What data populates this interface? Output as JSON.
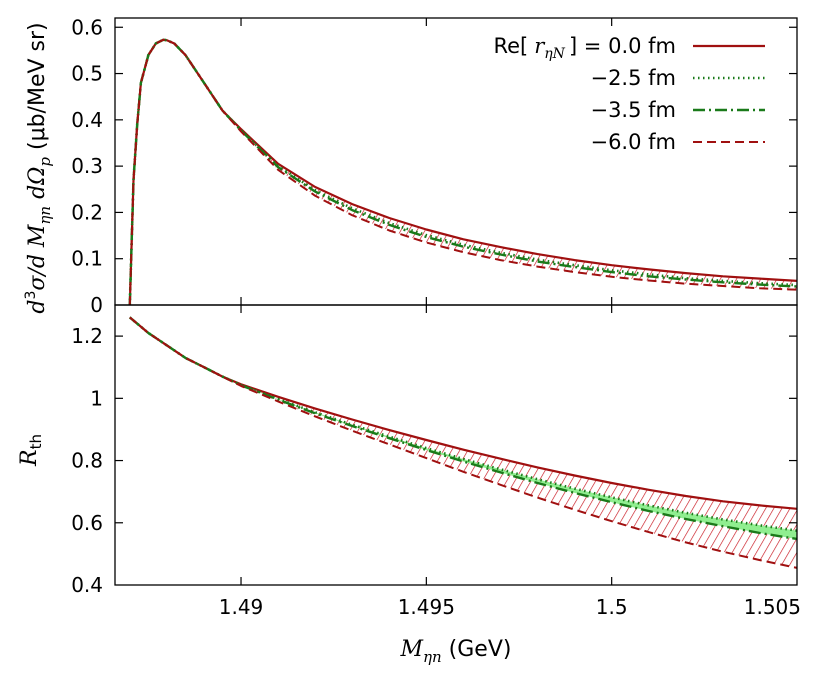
{
  "colors": {
    "red": "#a01010",
    "green": "#1a7a1a",
    "band_fill": "#90ee90",
    "hatch": "#c8141e"
  },
  "legend": {
    "header_pre": "Re[",
    "header_sym": "r",
    "header_sub": "ηN",
    "header_post": "] = 0.0 fm",
    "entries": [
      {
        "label": "−2.5 fm",
        "style": "dotted",
        "color": "green"
      },
      {
        "label": "−3.5 fm",
        "style": "dash-dot",
        "color": "green"
      },
      {
        "label": "−6.0 fm",
        "style": "dashed",
        "color": "red"
      }
    ]
  },
  "chart_data": [
    {
      "type": "line",
      "panel": "top",
      "ylabel_parts": [
        "d",
        "3",
        "σ/d ",
        "M",
        "ηn",
        " dΩ",
        "p",
        " (μb/MeV sr)"
      ],
      "xlim": [
        1.4866,
        1.505
      ],
      "ylim": [
        0,
        0.62
      ],
      "yticks": [
        0,
        0.1,
        0.2,
        0.3,
        0.4,
        0.5,
        0.6
      ],
      "ytick_labels": [
        "0",
        "0.1",
        "0.2",
        "0.3",
        "0.4",
        "0.5",
        "0.6"
      ],
      "x": [
        1.487,
        1.4871,
        1.4872,
        1.4873,
        1.4875,
        1.4877,
        1.4879,
        1.488,
        1.4882,
        1.4885,
        1.489,
        1.4895,
        1.49,
        1.491,
        1.492,
        1.493,
        1.494,
        1.495,
        1.496,
        1.497,
        1.498,
        1.499,
        1.5,
        1.501,
        1.502,
        1.503,
        1.504,
        1.505
      ],
      "series": [
        {
          "name": "Re[ rηN ] = 0.0 fm",
          "style": "solid",
          "values": [
            0,
            0.27,
            0.39,
            0.48,
            0.54,
            0.565,
            0.573,
            0.572,
            0.565,
            0.54,
            0.48,
            0.42,
            0.38,
            0.305,
            0.255,
            0.218,
            0.188,
            0.163,
            0.142,
            0.125,
            0.11,
            0.097,
            0.086,
            0.077,
            0.069,
            0.062,
            0.057,
            0.052
          ]
        },
        {
          "name": "−2.5 fm",
          "style": "dotted",
          "values": [
            0,
            0.27,
            0.39,
            0.48,
            0.54,
            0.565,
            0.573,
            0.572,
            0.565,
            0.54,
            0.48,
            0.42,
            0.378,
            0.3,
            0.248,
            0.209,
            0.177,
            0.151,
            0.13,
            0.113,
            0.098,
            0.086,
            0.075,
            0.066,
            0.058,
            0.052,
            0.047,
            0.043
          ]
        },
        {
          "name": "−3.5 fm",
          "style": "dash-dot",
          "values": [
            0,
            0.27,
            0.39,
            0.48,
            0.54,
            0.565,
            0.573,
            0.572,
            0.565,
            0.54,
            0.48,
            0.42,
            0.377,
            0.298,
            0.245,
            0.205,
            0.173,
            0.147,
            0.126,
            0.109,
            0.094,
            0.082,
            0.071,
            0.062,
            0.055,
            0.049,
            0.044,
            0.04
          ]
        },
        {
          "name": "−6.0 fm",
          "style": "dashed",
          "values": [
            0,
            0.27,
            0.39,
            0.48,
            0.54,
            0.565,
            0.573,
            0.572,
            0.565,
            0.54,
            0.48,
            0.42,
            0.375,
            0.292,
            0.236,
            0.194,
            0.161,
            0.135,
            0.114,
            0.097,
            0.083,
            0.071,
            0.061,
            0.053,
            0.046,
            0.041,
            0.036,
            0.033
          ]
        }
      ]
    },
    {
      "type": "line",
      "panel": "bottom",
      "ylabel_main": "R",
      "ylabel_sub": "th",
      "xlabel_main": "M",
      "xlabel_sub": "ηn",
      "xlabel_unit": " (GeV)",
      "xlim": [
        1.4866,
        1.505
      ],
      "ylim": [
        0.4,
        1.3
      ],
      "xticks": [
        1.49,
        1.495,
        1.5,
        1.505
      ],
      "xtick_labels": [
        "1.49",
        "1.495",
        "1.5",
        "1.505"
      ],
      "yticks": [
        0.4,
        0.6,
        0.8,
        1.0,
        1.2
      ],
      "ytick_labels": [
        "0.4",
        "0.6",
        "0.8",
        "1",
        "1.2"
      ],
      "x": [
        1.487,
        1.4875,
        1.488,
        1.4885,
        1.489,
        1.4895,
        1.49,
        1.491,
        1.492,
        1.493,
        1.494,
        1.495,
        1.496,
        1.497,
        1.498,
        1.499,
        1.5,
        1.501,
        1.502,
        1.503,
        1.504,
        1.505
      ],
      "series": [
        {
          "name": "Re[ rηN ] = 0.0 fm",
          "style": "solid",
          "values": [
            1.26,
            1.21,
            1.17,
            1.13,
            1.1,
            1.07,
            1.045,
            1.005,
            0.967,
            0.932,
            0.898,
            0.866,
            0.835,
            0.806,
            0.778,
            0.752,
            0.728,
            0.706,
            0.686,
            0.669,
            0.656,
            0.645
          ]
        },
        {
          "name": "−2.5 fm",
          "style": "dotted",
          "values": [
            1.26,
            1.21,
            1.17,
            1.13,
            1.1,
            1.07,
            1.043,
            0.998,
            0.955,
            0.915,
            0.877,
            0.84,
            0.805,
            0.772,
            0.74,
            0.71,
            0.682,
            0.656,
            0.632,
            0.611,
            0.592,
            0.575
          ]
        },
        {
          "name": "−3.5 fm",
          "style": "dash-dot",
          "values": [
            1.26,
            1.21,
            1.17,
            1.13,
            1.1,
            1.07,
            1.042,
            0.996,
            0.952,
            0.911,
            0.872,
            0.834,
            0.797,
            0.762,
            0.728,
            0.696,
            0.666,
            0.638,
            0.612,
            0.589,
            0.567,
            0.548
          ]
        },
        {
          "name": "−6.0 fm",
          "style": "dashed",
          "values": [
            1.26,
            1.21,
            1.17,
            1.13,
            1.1,
            1.07,
            1.04,
            0.99,
            0.942,
            0.896,
            0.852,
            0.808,
            0.764,
            0.722,
            0.681,
            0.642,
            0.605,
            0.57,
            0.537,
            0.507,
            0.48,
            0.455
          ]
        }
      ]
    }
  ]
}
